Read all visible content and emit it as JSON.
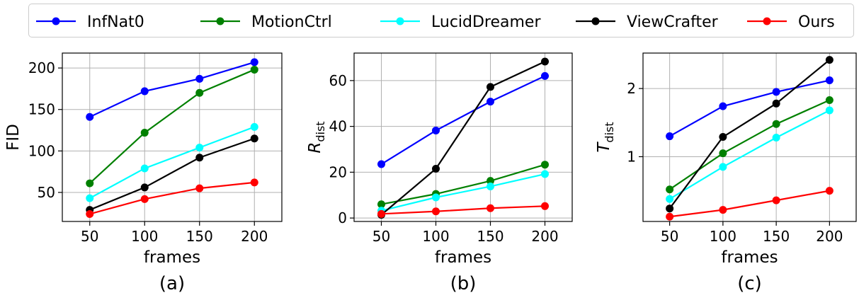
{
  "legend": {
    "position": "top",
    "entries": [
      {
        "name": "InfNat0",
        "color": "#0000ff"
      },
      {
        "name": "MotionCtrl",
        "color": "#008000"
      },
      {
        "name": "LucidDreamer",
        "color": "#00ffff"
      },
      {
        "name": "ViewCrafter",
        "color": "#000000"
      },
      {
        "name": "Ours",
        "color": "#ff0000"
      }
    ]
  },
  "chart_data": [
    {
      "type": "line",
      "panel_label": "(a)",
      "xlabel": "frames",
      "ylabel": "FID",
      "x": [
        50,
        100,
        150,
        200
      ],
      "x_ticks": [
        "50",
        "100",
        "150",
        "200"
      ],
      "xlim": [
        25,
        225
      ],
      "ylim": [
        15,
        218
      ],
      "y_ticks": [
        50,
        100,
        150,
        200
      ],
      "grid": true,
      "series": [
        {
          "name": "InfNat0",
          "color": "#0000ff",
          "values": [
            141,
            172,
            187,
            207
          ]
        },
        {
          "name": "MotionCtrl",
          "color": "#008000",
          "values": [
            61,
            122,
            170,
            198
          ]
        },
        {
          "name": "LucidDreamer",
          "color": "#00ffff",
          "values": [
            43,
            79,
            104,
            129
          ]
        },
        {
          "name": "ViewCrafter",
          "color": "#000000",
          "values": [
            29,
            56,
            92,
            115
          ]
        },
        {
          "name": "Ours",
          "color": "#ff0000",
          "values": [
            24,
            42,
            55,
            62
          ]
        }
      ]
    },
    {
      "type": "line",
      "panel_label": "(b)",
      "xlabel": "frames",
      "ylabel": "R",
      "ylabel_sub": "dist",
      "x": [
        50,
        100,
        150,
        200
      ],
      "x_ticks": [
        "50",
        "100",
        "150",
        "200"
      ],
      "xlim": [
        25,
        225
      ],
      "ylim": [
        -1.5,
        72
      ],
      "y_ticks": [
        0,
        20,
        40,
        60
      ],
      "grid": true,
      "series": [
        {
          "name": "InfNat0",
          "color": "#0000ff",
          "values": [
            23.5,
            38.2,
            50.8,
            62
          ]
        },
        {
          "name": "MotionCtrl",
          "color": "#008000",
          "values": [
            6,
            10.5,
            16.2,
            23.3
          ]
        },
        {
          "name": "LucidDreamer",
          "color": "#00ffff",
          "values": [
            3.2,
            9,
            13.8,
            19.2
          ]
        },
        {
          "name": "ViewCrafter",
          "color": "#000000",
          "values": [
            1.4,
            21.5,
            57.2,
            68.3
          ]
        },
        {
          "name": "Ours",
          "color": "#ff0000",
          "values": [
            1.8,
            2.9,
            4.3,
            5.2
          ]
        }
      ]
    },
    {
      "type": "line",
      "panel_label": "(c)",
      "xlabel": "frames",
      "ylabel": "T",
      "ylabel_sub": "dist",
      "x": [
        50,
        100,
        150,
        200
      ],
      "x_ticks": [
        "50",
        "100",
        "150",
        "200"
      ],
      "xlim": [
        25,
        225
      ],
      "ylim": [
        0.05,
        2.52
      ],
      "y_ticks": [
        1,
        2
      ],
      "grid": true,
      "series": [
        {
          "name": "InfNat0",
          "color": "#0000ff",
          "values": [
            1.3,
            1.74,
            1.95,
            2.12
          ]
        },
        {
          "name": "MotionCtrl",
          "color": "#008000",
          "values": [
            0.52,
            1.05,
            1.48,
            1.83
          ]
        },
        {
          "name": "LucidDreamer",
          "color": "#00ffff",
          "values": [
            0.38,
            0.85,
            1.28,
            1.68
          ]
        },
        {
          "name": "ViewCrafter",
          "color": "#000000",
          "values": [
            0.24,
            1.29,
            1.78,
            2.42
          ]
        },
        {
          "name": "Ours",
          "color": "#ff0000",
          "values": [
            0.12,
            0.22,
            0.36,
            0.5
          ]
        }
      ]
    }
  ]
}
